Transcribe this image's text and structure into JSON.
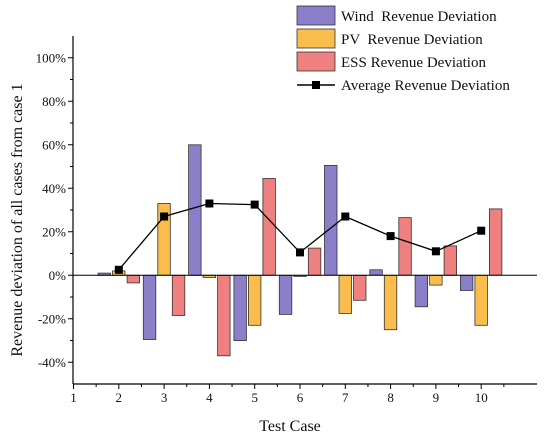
{
  "chart_data": {
    "type": "bar",
    "xlabel": "Test Case",
    "ylabel": "Revenue deviation of all cases from case 1",
    "categories": [
      "1",
      "2",
      "3",
      "4",
      "5",
      "6",
      "7",
      "8",
      "9",
      "10"
    ],
    "ylim": [
      -50,
      110
    ],
    "y_ticks": [
      -40,
      -20,
      0,
      20,
      40,
      60,
      80,
      100
    ],
    "y_tick_labels": [
      "-40%",
      "-20%",
      "0%",
      "20%",
      "40%",
      "60%",
      "80%",
      "100%"
    ],
    "grid": false,
    "legend_position": "top-right",
    "series": [
      {
        "name": "Wind  Revenue Deviation",
        "kind": "bar",
        "color": "#8c7fc9",
        "values": [
          null,
          1,
          -29.5,
          60,
          -30,
          -18,
          50.5,
          2.5,
          -14.5,
          -7
        ]
      },
      {
        "name": "PV  Revenue Deviation",
        "kind": "bar",
        "color": "#f9bd4e",
        "values": [
          null,
          2,
          33,
          -1,
          -23,
          -0.5,
          -17.5,
          -25,
          -4.5,
          -23
        ]
      },
      {
        "name": "ESS Revenue Deviation",
        "kind": "bar",
        "color": "#ef8080",
        "values": [
          null,
          -3.5,
          -18.5,
          -37,
          44.5,
          12.5,
          -11.5,
          26.5,
          13.5,
          30.5
        ]
      },
      {
        "name": "Average Revenue Deviation",
        "kind": "line",
        "color": "#000000",
        "values": [
          null,
          2.5,
          27,
          33,
          32.5,
          10.5,
          27,
          18,
          11,
          20.5
        ]
      }
    ]
  }
}
